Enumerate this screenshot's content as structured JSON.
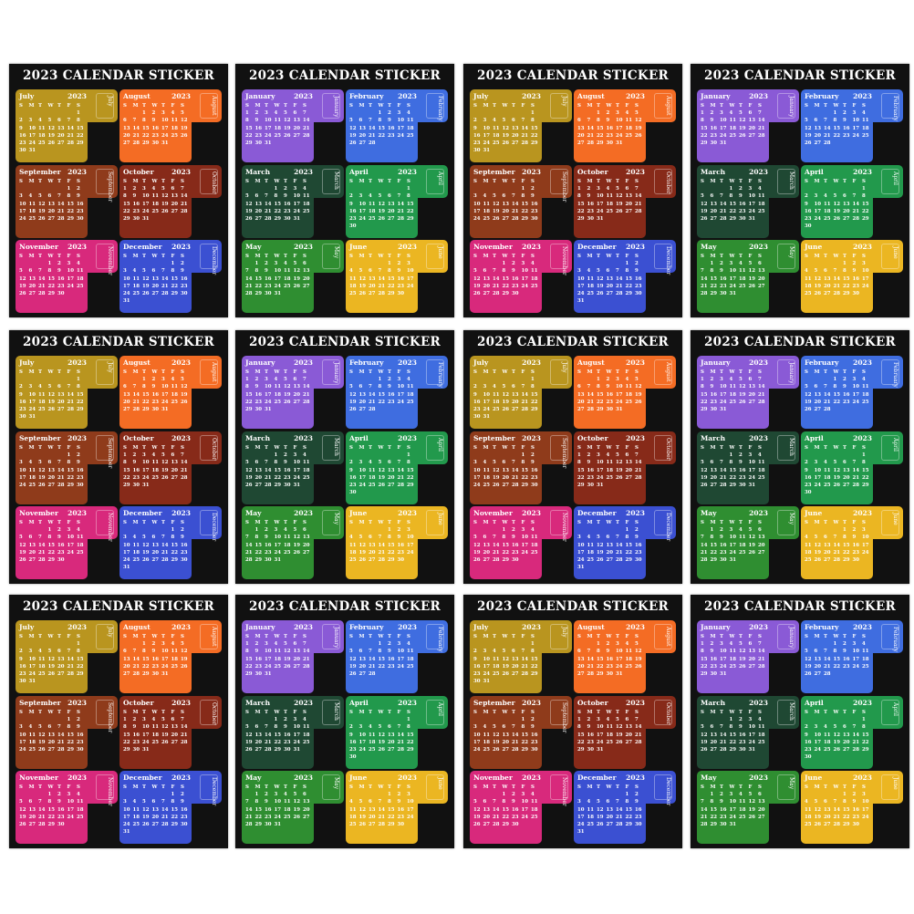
{
  "product": {
    "sheet_title": "2023 CALENDAR STICKER",
    "year": "2023",
    "weekdays": [
      "S",
      "M",
      "T",
      "W",
      "T",
      "F",
      "S"
    ],
    "sheet_types": {
      "first_half": [
        {
          "name": "January",
          "color": "#8a5ad6",
          "start_weekday": 0,
          "days": 31
        },
        {
          "name": "February",
          "color": "#3f6de0",
          "start_weekday": 3,
          "days": 28
        },
        {
          "name": "March",
          "color": "#1f4833",
          "start_weekday": 3,
          "days": 31
        },
        {
          "name": "April",
          "color": "#22994c",
          "start_weekday": 6,
          "days": 30
        },
        {
          "name": "May",
          "color": "#2f8e31",
          "start_weekday": 1,
          "days": 31
        },
        {
          "name": "June",
          "color": "#ebb622",
          "start_weekday": 4,
          "days": 30
        }
      ],
      "second_half": [
        {
          "name": "July",
          "color": "#b9951f",
          "start_weekday": 6,
          "days": 31
        },
        {
          "name": "August",
          "color": "#f46c24",
          "start_weekday": 2,
          "days": 31
        },
        {
          "name": "September",
          "color": "#8f3b1b",
          "start_weekday": 5,
          "days": 30
        },
        {
          "name": "October",
          "color": "#872a19",
          "start_weekday": 0,
          "days": 31
        },
        {
          "name": "November",
          "color": "#d8297c",
          "start_weekday": 3,
          "days": 30
        },
        {
          "name": "December",
          "color": "#3b50d2",
          "start_weekday": 5,
          "days": 31
        }
      ]
    },
    "layout_grid": [
      [
        "second_half",
        "first_half",
        "second_half",
        "first_half"
      ],
      [
        "second_half",
        "first_half",
        "second_half",
        "first_half"
      ],
      [
        "second_half",
        "first_half",
        "second_half",
        "first_half"
      ]
    ]
  }
}
